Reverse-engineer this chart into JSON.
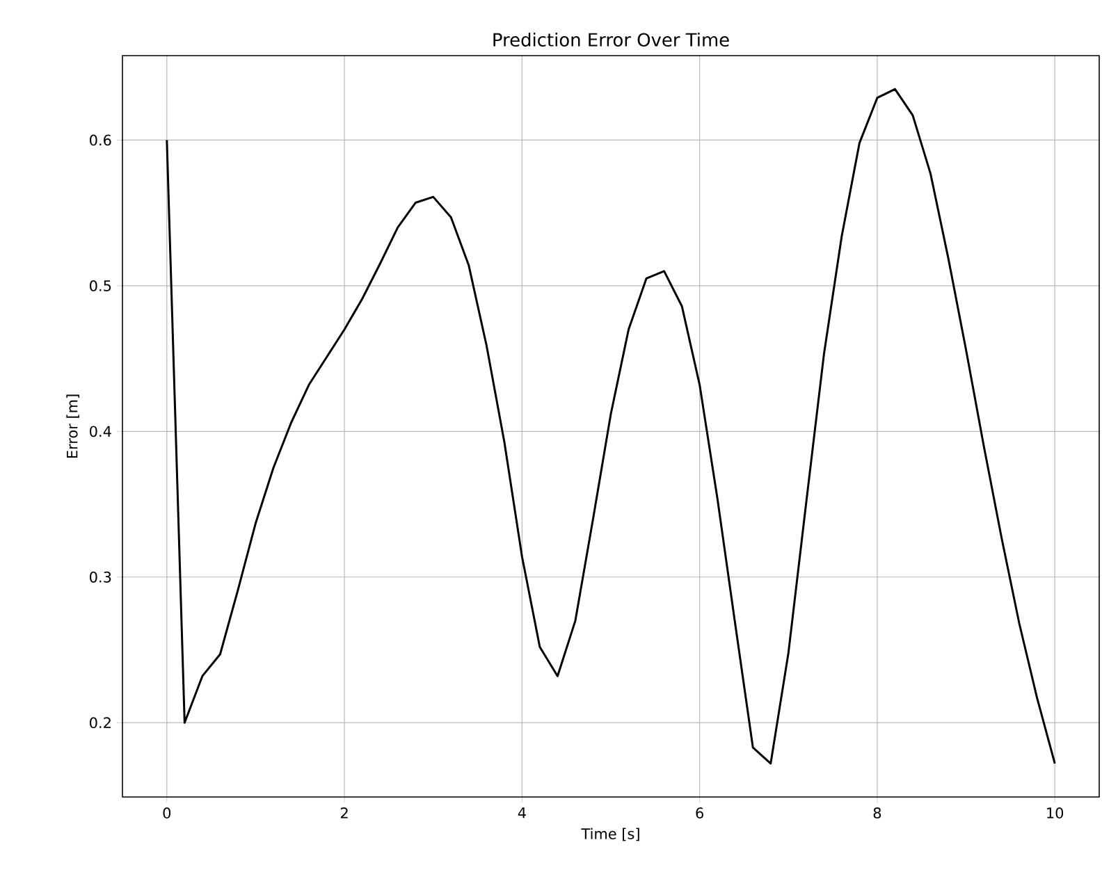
{
  "chart_data": {
    "type": "line",
    "title": "Prediction Error Over Time",
    "xlabel": "Time [s]",
    "ylabel": "Error [m]",
    "x": [
      0,
      0.2,
      0.4,
      0.6,
      0.8,
      1.0,
      1.2,
      1.4,
      1.6,
      1.8,
      2.0,
      2.2,
      2.4,
      2.6,
      2.8,
      3.0,
      3.2,
      3.4,
      3.6,
      3.8,
      4.0,
      4.2,
      4.4,
      4.6,
      4.8,
      5.0,
      5.2,
      5.4,
      5.6,
      5.8,
      6.0,
      6.2,
      6.4,
      6.6,
      6.8,
      7.0,
      7.2,
      7.4,
      7.6,
      7.8,
      8.0,
      8.2,
      8.4,
      8.6,
      8.8,
      9.0,
      9.2,
      9.4,
      9.6,
      9.8,
      10.0
    ],
    "series": [
      {
        "color": "#000000",
        "values": [
          0.6,
          0.2,
          0.232,
          0.247,
          0.291,
          0.337,
          0.375,
          0.406,
          0.432,
          0.451,
          0.47,
          0.491,
          0.515,
          0.54,
          0.557,
          0.561,
          0.547,
          0.514,
          0.459,
          0.393,
          0.314,
          0.252,
          0.232,
          0.27,
          0.34,
          0.412,
          0.47,
          0.505,
          0.51,
          0.486,
          0.432,
          0.354,
          0.268,
          0.183,
          0.172,
          0.248,
          0.351,
          0.453,
          0.534,
          0.598,
          0.629,
          0.635,
          0.617,
          0.577,
          0.519,
          0.456,
          0.39,
          0.327,
          0.268,
          0.217,
          0.172
        ]
      }
    ],
    "xlim": [
      -0.5,
      10.5
    ],
    "ylim": [
      0.149,
      0.658
    ],
    "xticks": [
      0,
      2,
      4,
      6,
      8,
      10
    ],
    "yticks": [
      0.2,
      0.3,
      0.4,
      0.5,
      0.6
    ],
    "grid": true,
    "marker": "none",
    "line_style": "solid"
  }
}
